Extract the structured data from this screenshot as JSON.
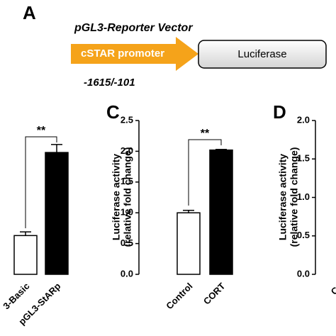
{
  "diagram": {
    "panel": "A",
    "title": "pGL3-Reporter Vector",
    "promoter": "cSTAR promoter",
    "gene": "Luciferase",
    "range": "-1615/-101"
  },
  "chart_data": [
    {
      "type": "bar",
      "categories": [
        "3-Basic",
        "pGL3-StARp"
      ],
      "values": [
        0.63,
        1.98
      ],
      "errors": [
        0.06,
        0.13
      ],
      "colors": [
        "#ffffff",
        "#000000"
      ],
      "ylim": [
        0,
        2.5
      ],
      "annotation": "**"
    },
    {
      "type": "bar",
      "panel": "C",
      "ylabel": [
        "Luciferase activity",
        "(relative fold change)"
      ],
      "categories": [
        "Control",
        "CORT"
      ],
      "values": [
        1.0,
        2.02
      ],
      "errors": [
        0.04,
        0.01
      ],
      "colors": [
        "#ffffff",
        "#000000"
      ],
      "ylim": [
        0,
        2.5
      ],
      "yticks": [
        {
          "value": 0,
          "label": "0.0"
        },
        {
          "value": 0.5,
          "label": "0.5"
        },
        {
          "value": 1,
          "label": "1.0"
        },
        {
          "value": 1.5,
          "label": "1.5"
        },
        {
          "value": 2,
          "label": "2.0"
        },
        {
          "value": 2.5,
          "label": "2.5"
        }
      ],
      "annotation": "**"
    },
    {
      "type": "bar",
      "panel": "D",
      "ylabel": [
        "Luciferase activity",
        "(relative fold change)"
      ],
      "categories": [
        "Co"
      ],
      "values": [
        null
      ],
      "colors": [
        "#ffffff"
      ],
      "ylim": [
        0,
        2
      ],
      "yticks": [
        {
          "value": 0,
          "label": "0.0"
        },
        {
          "value": 0.5,
          "label": "0.5"
        },
        {
          "value": 1,
          "label": "1.0"
        },
        {
          "value": 1.5,
          "label": "1.5"
        },
        {
          "value": 2,
          "label": "2.0"
        }
      ]
    }
  ]
}
